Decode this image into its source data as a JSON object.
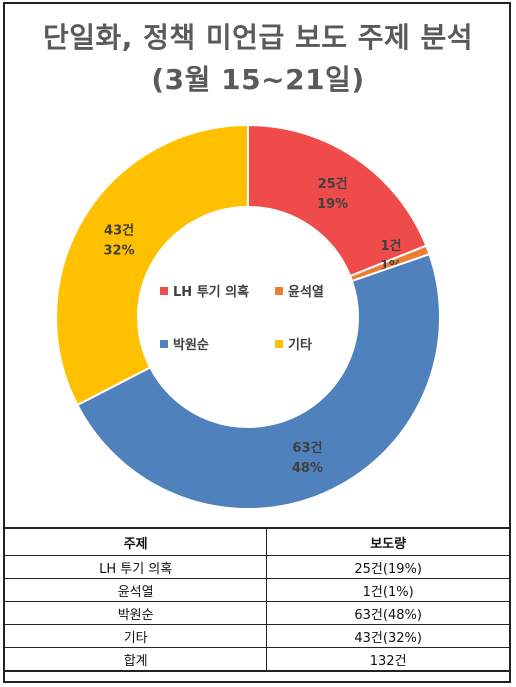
{
  "title_line1": "단일화, 정책 미언급 보도 주제 분석",
  "title_line2": "(3월 15~21일)",
  "chart_data": {
    "type": "pie",
    "donut": true,
    "title": "단일화, 정책 미언급 보도 주제 분석 (3월 15~21일)",
    "categories": [
      "LH 투기 의혹",
      "윤석열",
      "박원순",
      "기타"
    ],
    "values": [
      25,
      1,
      63,
      43
    ],
    "data_labels": [
      {
        "count": "25건",
        "percent": "19%"
      },
      {
        "count": "1건",
        "percent": "1%"
      },
      {
        "count": "63건",
        "percent": "48%"
      },
      {
        "count": "43건",
        "percent": "32%"
      }
    ],
    "colors": [
      "#f04b4b",
      "#ed7d31",
      "#4f81bd",
      "#ffc000"
    ],
    "legend_placement": "center",
    "legend": [
      {
        "label": "LH 투기 의혹",
        "color": "#f04b4b"
      },
      {
        "label": "윤석열",
        "color": "#ed7d31"
      },
      {
        "label": "박원순",
        "color": "#4f81bd"
      },
      {
        "label": "기타",
        "color": "#ffc000"
      }
    ]
  },
  "table": {
    "headers": [
      "주제",
      "보도량"
    ],
    "rows": [
      [
        "LH 투기 의혹",
        "25건(19%)"
      ],
      [
        "윤석열",
        "1건(1%)"
      ],
      [
        "박원순",
        "63건(48%)"
      ],
      [
        "기타",
        "43건(32%)"
      ],
      [
        "합계",
        "132건"
      ]
    ]
  }
}
